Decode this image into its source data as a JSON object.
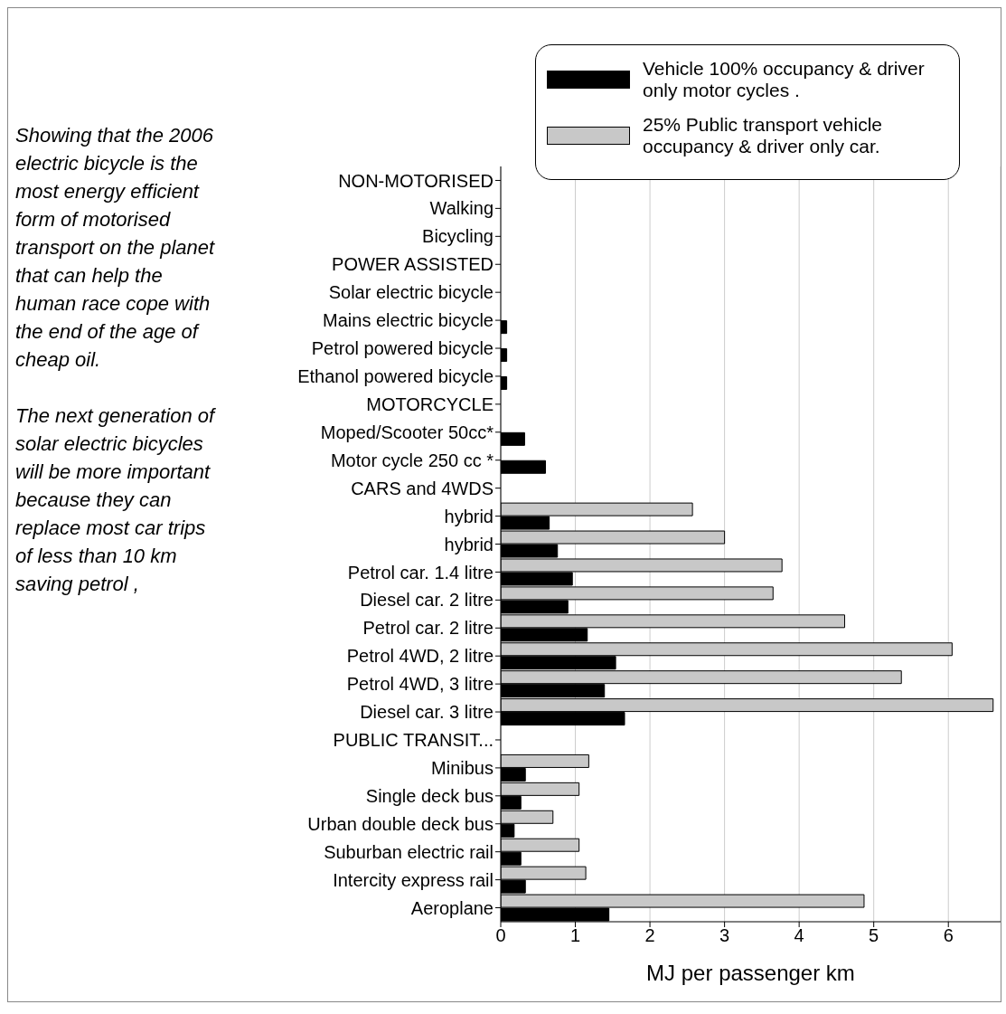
{
  "chart_data": {
    "type": "bar",
    "orientation": "horizontal",
    "xlabel": "MJ per passenger km",
    "categories": [
      "NON-MOTORISED",
      "Walking",
      "Bicycling",
      "POWER  ASSISTED",
      "Solar electric bicycle",
      "Mains electric bicycle",
      "Petrol powered bicycle",
      "Ethanol powered bicycle",
      "MOTORCYCLE",
      "Moped/Scooter 50cc*",
      "Motor cycle 250 cc *",
      "CARS  and  4WDS",
      "hybrid",
      "hybrid",
      "Petrol car. 1.4 litre",
      "Diesel car. 2 litre",
      "Petrol car. 2 litre",
      "Petrol 4WD, 2 litre",
      "Petrol 4WD, 3 litre",
      "Diesel car. 3 litre",
      "PUBLIC    TRANSIT...",
      "Minibus",
      "Single deck bus",
      "Urban double deck bus",
      "Suburban electric rail",
      "Intercity express rail",
      "Aeroplane"
    ],
    "series": [
      {
        "name": "Vehicle 100% occupancy & driver only motor cycles .",
        "color": "#000000",
        "values": [
          null,
          null,
          null,
          null,
          null,
          0.08,
          0.08,
          0.08,
          null,
          0.32,
          0.6,
          null,
          0.65,
          0.76,
          0.96,
          0.9,
          1.16,
          1.54,
          1.39,
          1.66,
          null,
          0.33,
          0.27,
          0.18,
          0.27,
          0.33,
          1.45
        ]
      },
      {
        "name": "25% Public transport vehicle occupancy & driver only car.",
        "color": "#c8c8c8",
        "values": [
          null,
          null,
          null,
          null,
          null,
          null,
          null,
          null,
          null,
          null,
          null,
          null,
          2.57,
          3.0,
          3.77,
          3.65,
          4.61,
          6.05,
          5.37,
          6.6,
          null,
          1.18,
          1.05,
          0.7,
          1.05,
          1.14,
          4.87
        ]
      }
    ],
    "xlim": [
      0,
      6.7
    ],
    "xticks": [
      0,
      1,
      2,
      3,
      4,
      5,
      6
    ],
    "grid": "x",
    "legend": "top right",
    "annotations": [
      "Showing that the 2006 electric bicycle is the most energy efficient form of motorised transport on the planet that can help the human race cope with the end of the age of cheap oil.",
      "The next generation of solar  electric bicycles will be more important because they can replace most car trips of less than 10 km saving petrol ,"
    ]
  }
}
